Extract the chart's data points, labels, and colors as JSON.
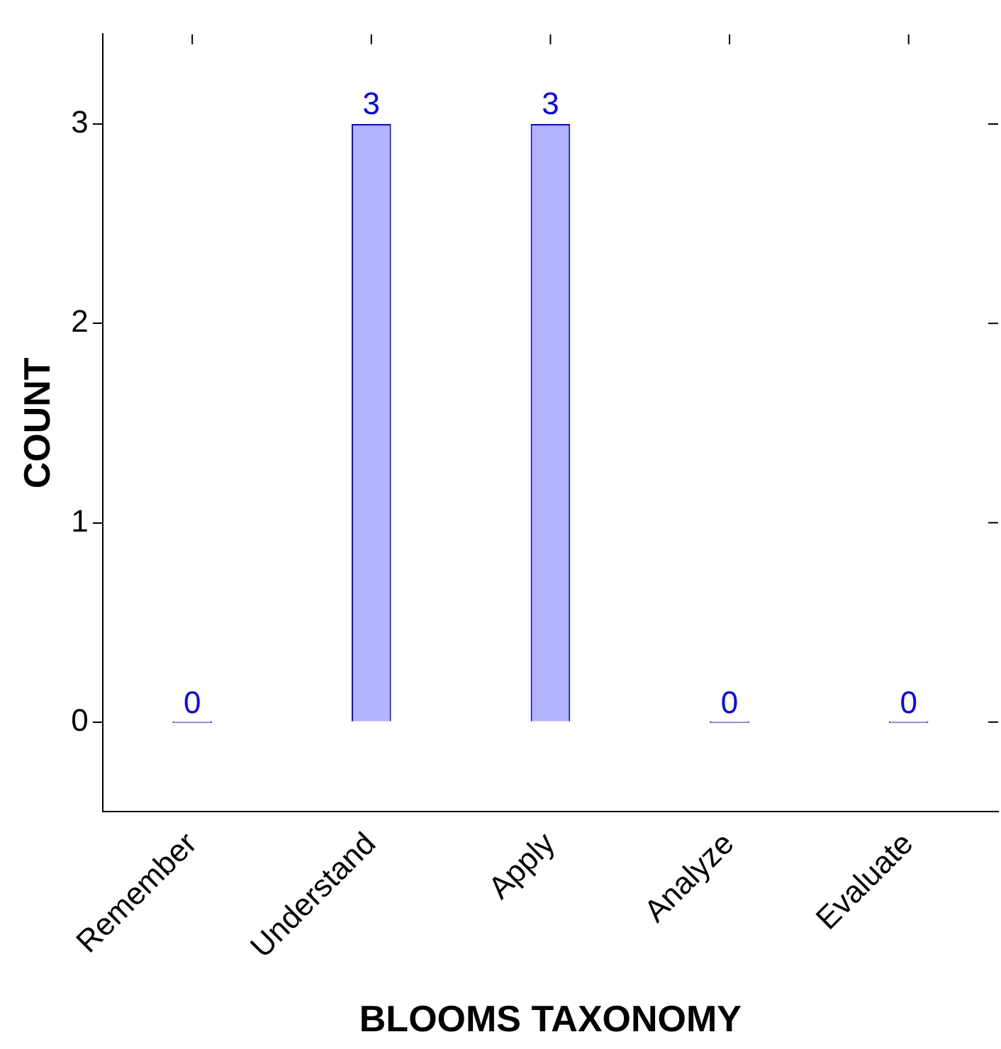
{
  "chart_data": {
    "type": "bar",
    "xlabel": "BLOOMS TAXONOMY",
    "ylabel": "COUNT",
    "categories": [
      "Remember",
      "Understand",
      "Apply",
      "Analyze",
      "Evaluate"
    ],
    "values": [
      0,
      3,
      3,
      0,
      0
    ],
    "color": "#b3b3ff",
    "ylim": [
      -0.45,
      3.45
    ],
    "yticks": [
      0,
      1,
      2,
      3
    ],
    "data_labels": true,
    "grid": false,
    "legend": false
  }
}
